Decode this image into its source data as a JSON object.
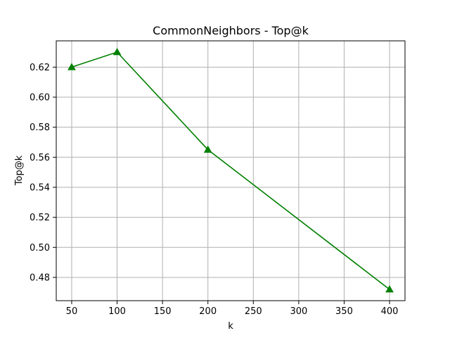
{
  "chart_data": {
    "type": "line",
    "title": "CommonNeighbors - Top@k",
    "xlabel": "k",
    "ylabel": "Top@k",
    "x": [
      50,
      100,
      200,
      400
    ],
    "series": [
      {
        "values": [
          0.62,
          0.63,
          0.565,
          0.472
        ],
        "color": "#008000",
        "marker": "triangle-up"
      }
    ],
    "xlim": [
      33,
      417
    ],
    "ylim": [
      0.4645,
      0.6375
    ],
    "xticks": [
      50,
      100,
      150,
      200,
      250,
      300,
      350,
      400
    ],
    "xtick_labels": [
      "50",
      "100",
      "150",
      "200",
      "250",
      "300",
      "350",
      "400"
    ],
    "yticks": [
      0.48,
      0.5,
      0.52,
      0.54,
      0.56,
      0.58,
      0.6,
      0.62
    ],
    "ytick_labels": [
      "0.48",
      "0.50",
      "0.52",
      "0.54",
      "0.56",
      "0.58",
      "0.60",
      "0.62"
    ],
    "grid": true,
    "grid_color": "#b0b0b0"
  }
}
